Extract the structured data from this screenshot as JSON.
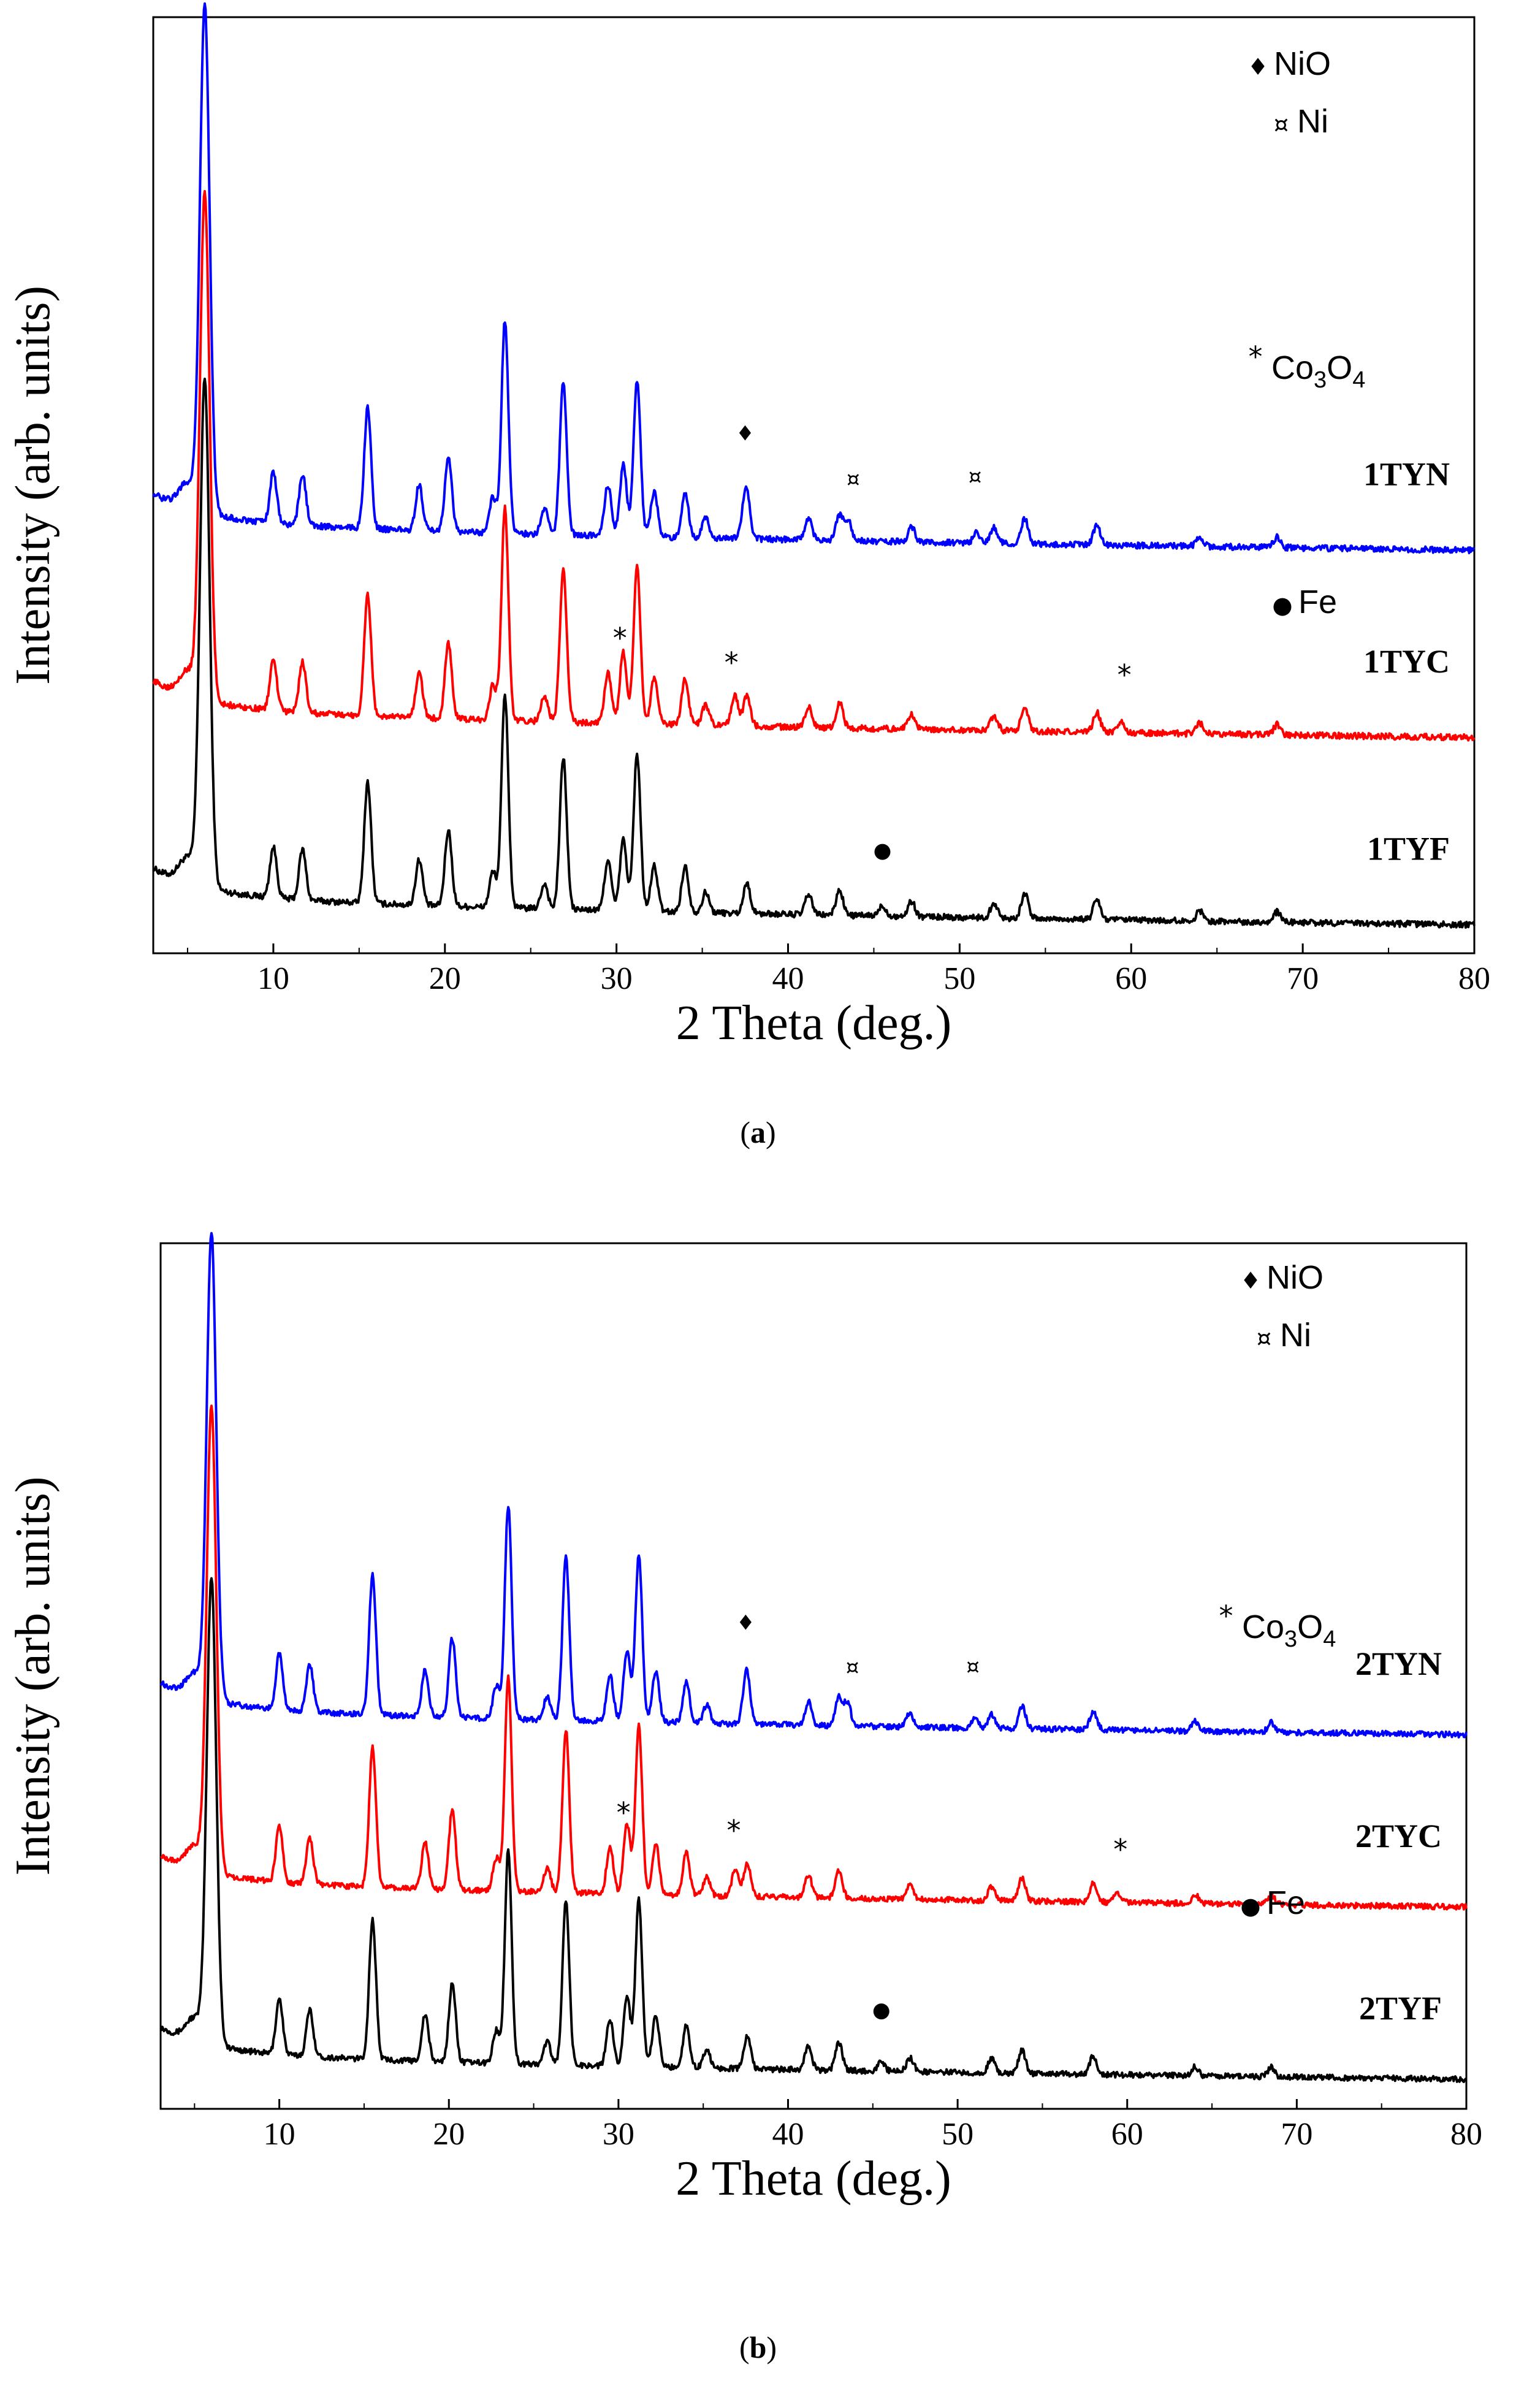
{
  "chart_data": [
    {
      "type": "line",
      "panel_label": "a",
      "xlabel": "2 Theta (deg.)",
      "ylabel": "Intensity (arb. units)",
      "xlim": [
        3,
        80
      ],
      "xticks": [
        10,
        20,
        30,
        40,
        50,
        60,
        70,
        80
      ],
      "offset_step": 0.37,
      "peaks": [
        {
          "x": 6.0,
          "h": 1.0
        },
        {
          "x": 10.0,
          "h": 0.1
        },
        {
          "x": 11.7,
          "h": 0.1
        },
        {
          "x": 15.5,
          "h": 0.24
        },
        {
          "x": 18.5,
          "h": 0.09
        },
        {
          "x": 20.2,
          "h": 0.15
        },
        {
          "x": 22.8,
          "h": 0.07
        },
        {
          "x": 23.5,
          "h": 0.42
        },
        {
          "x": 25.8,
          "h": 0.05
        },
        {
          "x": 26.9,
          "h": 0.3
        },
        {
          "x": 29.5,
          "h": 0.1
        },
        {
          "x": 30.4,
          "h": 0.14
        },
        {
          "x": 31.2,
          "h": 0.31
        },
        {
          "x": 32.2,
          "h": 0.09
        },
        {
          "x": 34.0,
          "h": 0.09
        },
        {
          "x": 35.2,
          "h": 0.04
        },
        {
          "x": 37.6,
          "h": 0.06
        },
        {
          "x": 41.2,
          "h": 0.04
        },
        {
          "x": 43.0,
          "h": 0.05
        },
        {
          "x": 47.2,
          "h": 0.03
        },
        {
          "x": 52.0,
          "h": 0.03
        },
        {
          "x": 53.8,
          "h": 0.05
        },
        {
          "x": 58.0,
          "h": 0.04
        },
        {
          "x": 64.0,
          "h": 0.02
        },
        {
          "x": 68.5,
          "h": 0.02
        }
      ],
      "series": [
        {
          "name": "1TYF",
          "color": "#000000",
          "offset": 0,
          "extra_peaks": [
            {
              "x": 45.5,
              "h": 0.02
            }
          ]
        },
        {
          "name": "1TYC",
          "color": "#ff0000",
          "offset": 1,
          "extra_peaks": [
            {
              "x": 36.9,
              "h": 0.06
            },
            {
              "x": 59.4,
              "h": 0.02
            }
          ]
        },
        {
          "name": "1TYN",
          "color": "#0000ff",
          "offset": 2,
          "extra_peaks": [
            {
              "x": 37.5,
              "h": 0.05
            },
            {
              "x": 43.5,
              "h": 0.04
            },
            {
              "x": 51.0,
              "h": 0.02
            }
          ]
        }
      ],
      "annotations": [
        {
          "text": "♦",
          "x": 37.5,
          "series": "1TYN"
        },
        {
          "text": "¤",
          "x": 43.8,
          "series": "1TYN"
        },
        {
          "text": "¤",
          "x": 50.9,
          "series": "1TYN"
        },
        {
          "text": "*",
          "x": 30.2,
          "series": "1TYC"
        },
        {
          "text": "*",
          "x": 36.7,
          "series": "1TYC"
        },
        {
          "text": "*",
          "x": 59.6,
          "series": "1TYC"
        },
        {
          "text": "●",
          "x": 45.5,
          "series": "1TYF"
        }
      ],
      "legend": [
        {
          "symbol": "♦",
          "label": "NiO"
        },
        {
          "symbol": "¤",
          "label": "Ni"
        },
        {
          "symbol": "*",
          "label": "Co",
          "sub1": "3",
          "mid": "O",
          "sub2": "4"
        },
        {
          "symbol": "●",
          "label": "Fe"
        }
      ]
    },
    {
      "type": "line",
      "panel_label": "b",
      "xlabel": "2 Theta (deg.)",
      "ylabel": "Intensity (arb. units)",
      "xlim": [
        3,
        80
      ],
      "xticks": [
        10,
        20,
        30,
        40,
        50,
        60,
        70,
        80
      ],
      "offset_step": 0.37,
      "peaks": [
        {
          "x": 6.0,
          "h": 1.0
        },
        {
          "x": 10.0,
          "h": 0.12
        },
        {
          "x": 11.8,
          "h": 0.1
        },
        {
          "x": 15.5,
          "h": 0.3
        },
        {
          "x": 18.6,
          "h": 0.1
        },
        {
          "x": 20.2,
          "h": 0.17
        },
        {
          "x": 22.8,
          "h": 0.07
        },
        {
          "x": 23.5,
          "h": 0.46
        },
        {
          "x": 25.8,
          "h": 0.05
        },
        {
          "x": 26.9,
          "h": 0.35
        },
        {
          "x": 29.5,
          "h": 0.1
        },
        {
          "x": 30.5,
          "h": 0.15
        },
        {
          "x": 31.2,
          "h": 0.36
        },
        {
          "x": 32.2,
          "h": 0.11
        },
        {
          "x": 34.0,
          "h": 0.09
        },
        {
          "x": 35.2,
          "h": 0.04
        },
        {
          "x": 37.6,
          "h": 0.07
        },
        {
          "x": 41.2,
          "h": 0.05
        },
        {
          "x": 43.0,
          "h": 0.06
        },
        {
          "x": 47.2,
          "h": 0.03
        },
        {
          "x": 52.0,
          "h": 0.03
        },
        {
          "x": 53.8,
          "h": 0.05
        },
        {
          "x": 58.0,
          "h": 0.04
        },
        {
          "x": 64.0,
          "h": 0.02
        },
        {
          "x": 68.5,
          "h": 0.02
        }
      ],
      "series": [
        {
          "name": "2TYF",
          "color": "#000000",
          "offset": 0,
          "extra_peaks": [
            {
              "x": 45.5,
              "h": 0.02
            }
          ]
        },
        {
          "name": "2TYC",
          "color": "#ff0000",
          "offset": 1,
          "extra_peaks": [
            {
              "x": 36.9,
              "h": 0.06
            },
            {
              "x": 59.4,
              "h": 0.02
            }
          ]
        },
        {
          "name": "2TYN",
          "color": "#0000ff",
          "offset": 2,
          "extra_peaks": [
            {
              "x": 37.5,
              "h": 0.05
            },
            {
              "x": 43.5,
              "h": 0.05
            },
            {
              "x": 51.0,
              "h": 0.02
            }
          ]
        }
      ],
      "annotations": [
        {
          "text": "♦",
          "x": 37.5,
          "series": "2TYN"
        },
        {
          "text": "¤",
          "x": 43.8,
          "series": "2TYN"
        },
        {
          "text": "¤",
          "x": 50.9,
          "series": "2TYN"
        },
        {
          "text": "*",
          "x": 30.3,
          "series": "2TYC"
        },
        {
          "text": "*",
          "x": 36.8,
          "series": "2TYC"
        },
        {
          "text": "*",
          "x": 59.6,
          "series": "2TYC"
        },
        {
          "text": "●",
          "x": 45.5,
          "series": "2TYF"
        }
      ],
      "legend": [
        {
          "symbol": "♦",
          "label": "NiO"
        },
        {
          "symbol": "¤",
          "label": "Ni"
        },
        {
          "symbol": "*",
          "label": "Co",
          "sub1": "3",
          "mid": "O",
          "sub2": "4"
        },
        {
          "symbol": "●",
          "label": "Fe"
        }
      ]
    }
  ]
}
